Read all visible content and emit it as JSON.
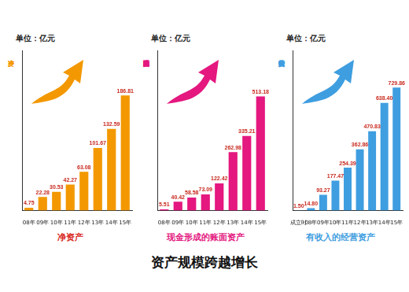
{
  "main_title": "资产规模跨越增长",
  "chart_data": [
    {
      "type": "bar",
      "unit": "单位：亿元",
      "y_label": "净资产",
      "title": "净资产",
      "categories": [
        "08年",
        "09年",
        "10年",
        "11年",
        "12年",
        "13年",
        "14年",
        "15年"
      ],
      "values": [
        4.75,
        22.28,
        30.53,
        42.27,
        63.08,
        101.67,
        132.59,
        186.81
      ],
      "value_labels": [
        "4.75",
        "22.28",
        "30.53",
        "42.27",
        "63.08",
        "101.67",
        "132.59",
        "186.81"
      ],
      "color": "#f39800",
      "ylim": [
        0,
        260
      ],
      "tick_labels": "x",
      "data_labels": true,
      "grid": false
    },
    {
      "type": "bar",
      "unit": "单位：亿元",
      "y_label": "现金形成的账面资产",
      "title": "现金形成的账面资产",
      "categories": [
        "08年",
        "09年",
        "10年",
        "11年",
        "12年",
        "13年",
        "14年",
        "15年"
      ],
      "values": [
        5.51,
        40.42,
        58.58,
        73.09,
        122.42,
        262.98,
        335.21,
        513.18
      ],
      "value_labels": [
        "5.51",
        "40.42",
        "58.58",
        "73.09",
        "122.42",
        "262.98",
        "335.21",
        "513.18"
      ],
      "color": "#e4187f",
      "ylim": [
        0,
        720
      ],
      "tick_labels": "x",
      "data_labels": true,
      "grid": false
    },
    {
      "type": "bar",
      "unit": "单位：亿元",
      "y_label": "有收入的经营资产",
      "title": "有收入的经营资产",
      "categories": [
        "成立时",
        "08年",
        "09年",
        "10年",
        "11年",
        "12年",
        "13年",
        "14年",
        "15年"
      ],
      "values": [
        1.5,
        14.8,
        93.27,
        177.47,
        254.39,
        362.86,
        470.83,
        638.4,
        729.86
      ],
      "value_labels": [
        "1.50",
        "14.80",
        "93.27",
        "177.47",
        "254.39",
        "362.86",
        "470.83",
        "638.40",
        "729.86"
      ],
      "color": "#3f9ee0",
      "ylim": [
        0,
        950
      ],
      "tick_labels": "x",
      "data_labels": true,
      "grid": false
    }
  ]
}
